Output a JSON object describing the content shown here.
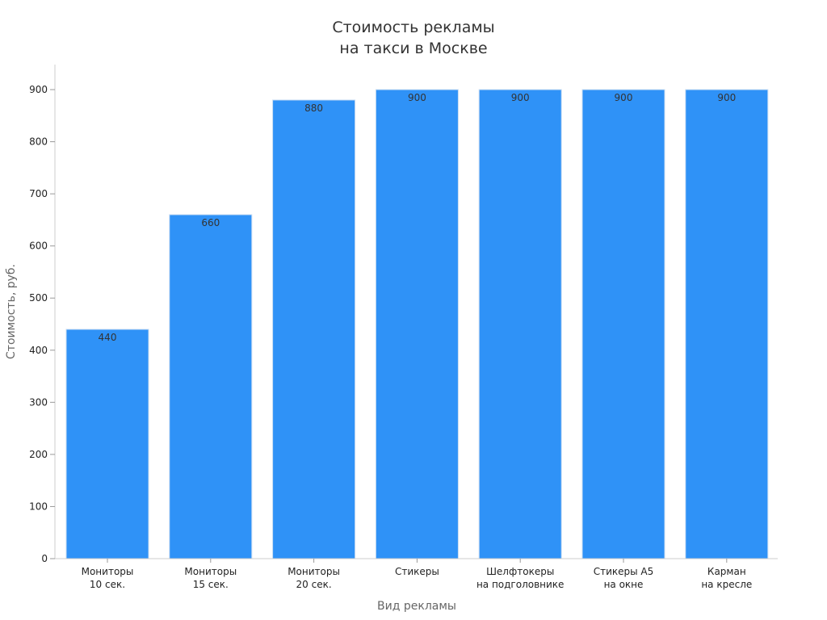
{
  "chart_data": {
    "type": "bar",
    "title": [
      "Стоимость рекламы",
      "на такси в Москве"
    ],
    "xlabel": "Вид рекламы",
    "ylabel": "Стоимость, руб.",
    "categories": [
      [
        "Мониторы",
        "10 сек."
      ],
      [
        "Мониторы",
        "15 сек."
      ],
      [
        "Мониторы",
        "20 сек."
      ],
      [
        "Стикеры"
      ],
      [
        "Шелфтокеры",
        "на подголовнике"
      ],
      [
        "Стикеры А5",
        "на окне"
      ],
      [
        "Карман",
        "на кресле"
      ]
    ],
    "values": [
      440,
      660,
      880,
      900,
      900,
      900,
      900
    ],
    "data_labels": [
      "440",
      "660",
      "880",
      "900",
      "900",
      "900",
      "900"
    ],
    "ylim": [
      0,
      950
    ],
    "yticks": [
      0,
      100,
      200,
      300,
      400,
      500,
      600,
      700,
      800,
      900
    ],
    "grid": false,
    "legend": "none",
    "colors": {
      "bar": "#2f92f7",
      "bar_edge": "#c8dcf2",
      "text": "#333333",
      "axis_title": "#666666"
    }
  }
}
